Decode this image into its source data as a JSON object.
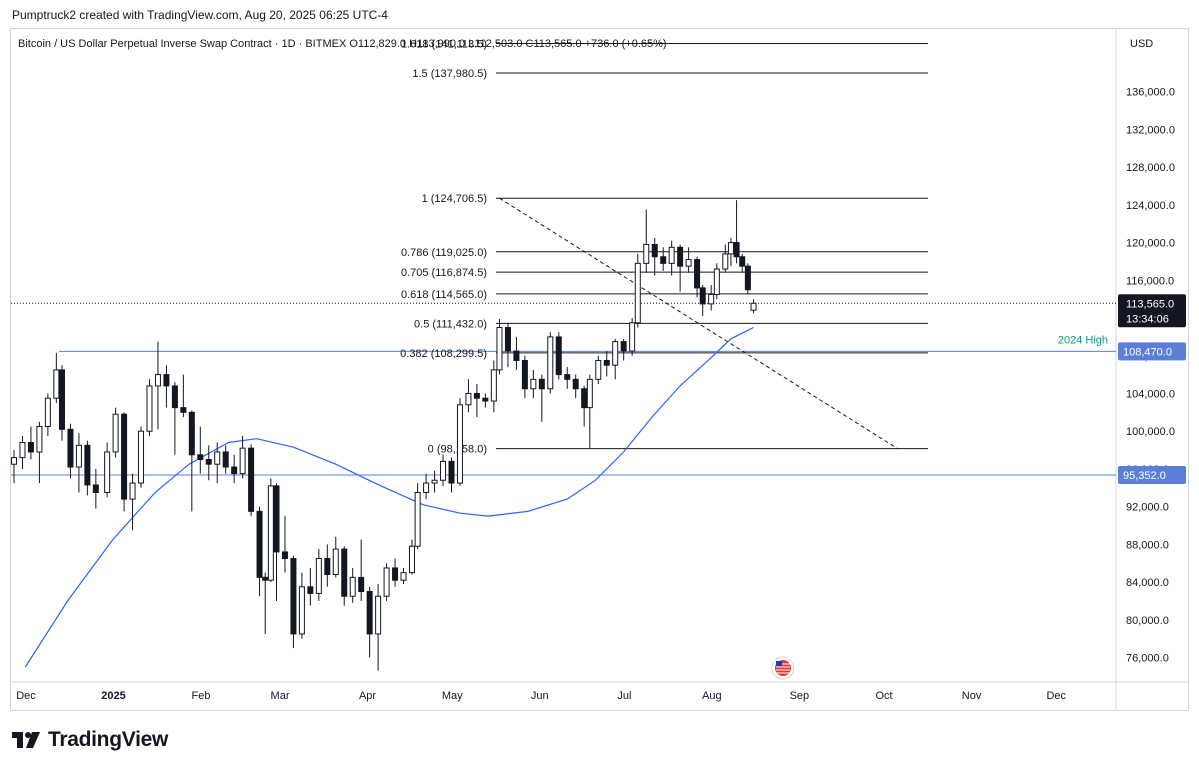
{
  "header": {
    "attribution": "Pumptruck2 created with TradingView.com, Aug 20, 2025 06:25 UTC-4"
  },
  "legend": {
    "symbol": "Bitcoin / US Dollar Perpetual Inverse Swap Contract · 1D · BITMEX",
    "ohlc": "O112,829.0  H113,990.0  L112,503.0  C113,565.0  +736.0 (+0.65%)"
  },
  "price_axis": {
    "currency": "USD",
    "last_price_label": "113,565.0",
    "countdown": "13:34:06",
    "ma_label": "108,470.0",
    "support_label": "95,352.0"
  },
  "colors": {
    "up": "#131722",
    "down": "#131722",
    "ma": "#2962ff",
    "hline": "#5b7fd6",
    "fib": "#131722",
    "annotation": "#089981",
    "label_box": "#5b7fd6",
    "last_box": "#131722"
  },
  "brand": {
    "name": "TradingView",
    "icon": "tradingview-logo-icon"
  },
  "chart_data": {
    "type": "candlestick",
    "x_ticks": [
      "Dec",
      "2025",
      "Feb",
      "Mar",
      "Apr",
      "May",
      "Jun",
      "Jul",
      "Aug",
      "Sep",
      "Oct",
      "Nov",
      "Dec"
    ],
    "y_ticks": [
      76000,
      80000,
      84000,
      88000,
      92000,
      96000,
      100000,
      104000,
      108000,
      112000,
      116000,
      120000,
      124000,
      128000,
      132000,
      136000
    ],
    "y_tick_labels": [
      "76,000.0",
      "80,000.0",
      "84,000.0",
      "88,000.0",
      "92,000.0",
      "96,000.0",
      "100,000.0",
      "104,000.0",
      "108,000.0",
      "112,000.0",
      "116,000.0",
      "120,000.0",
      "124,000.0",
      "128,000.0",
      "132,000.0",
      "136,000.0"
    ],
    "ylim": [
      72000,
      141500
    ],
    "fibonacci": [
      {
        "label": "1.618 (141,113.5)",
        "level": 141113.5
      },
      {
        "label": "1.5 (137,980.5)",
        "level": 137980.5
      },
      {
        "label": "1 (124,706.5)",
        "level": 124706.5
      },
      {
        "label": "0.786 (119,025.0)",
        "level": 119025.0
      },
      {
        "label": "0.705 (116,874.5)",
        "level": 116874.5
      },
      {
        "label": "0.618 (114,565.0)",
        "level": 114565.0
      },
      {
        "label": "0.5 (111,432.0)",
        "level": 111432.0
      },
      {
        "label": "0.382 (108,299.5)",
        "level": 108299.5
      },
      {
        "label": "0 (98,158.0)",
        "level": 98158.0
      }
    ],
    "horizontal_lines": [
      {
        "name": "2024 High",
        "level": 108470.0
      },
      {
        "name": "",
        "level": 95352.0
      }
    ],
    "last_price": 113565.0,
    "trendline": {
      "from": {
        "x": "2025-05-22",
        "y": 124706.5
      },
      "to": {
        "x": "2025-10-10",
        "y": 98158.0
      }
    },
    "moving_average_points": [
      [
        "2024-12-05",
        75000
      ],
      [
        "2024-12-20",
        82000
      ],
      [
        "2025-01-05",
        88500
      ],
      [
        "2025-01-20",
        93500
      ],
      [
        "2025-02-01",
        96500
      ],
      [
        "2025-02-15",
        98800
      ],
      [
        "2025-02-25",
        99200
      ],
      [
        "2025-03-10",
        98300
      ],
      [
        "2025-03-25",
        96500
      ],
      [
        "2025-04-10",
        94200
      ],
      [
        "2025-04-25",
        92200
      ],
      [
        "2025-05-08",
        91300
      ],
      [
        "2025-05-18",
        91000
      ],
      [
        "2025-06-01",
        91500
      ],
      [
        "2025-06-15",
        92800
      ],
      [
        "2025-06-25",
        94800
      ],
      [
        "2025-07-05",
        97800
      ],
      [
        "2025-07-15",
        101500
      ],
      [
        "2025-07-25",
        104800
      ],
      [
        "2025-08-05",
        107800
      ],
      [
        "2025-08-12",
        109800
      ],
      [
        "2025-08-20",
        111000
      ]
    ],
    "candles": [
      {
        "t": "2024-12-01",
        "o": 96500,
        "h": 98000,
        "l": 94500,
        "c": 97200
      },
      {
        "t": "2024-12-04",
        "o": 97200,
        "h": 99500,
        "l": 96000,
        "c": 98800
      },
      {
        "t": "2024-12-07",
        "o": 98800,
        "h": 100500,
        "l": 97000,
        "c": 97800
      },
      {
        "t": "2024-12-10",
        "o": 97800,
        "h": 101000,
        "l": 94500,
        "c": 100500
      },
      {
        "t": "2024-12-13",
        "o": 100500,
        "h": 104000,
        "l": 99500,
        "c": 103500
      },
      {
        "t": "2024-12-16",
        "o": 103500,
        "h": 108300,
        "l": 103000,
        "c": 106500
      },
      {
        "t": "2024-12-18",
        "o": 106500,
        "h": 107000,
        "l": 99000,
        "c": 100200
      },
      {
        "t": "2024-12-21",
        "o": 100200,
        "h": 100800,
        "l": 95000,
        "c": 96200
      },
      {
        "t": "2024-12-24",
        "o": 96200,
        "h": 99800,
        "l": 93500,
        "c": 98500
      },
      {
        "t": "2024-12-27",
        "o": 98500,
        "h": 99000,
        "l": 93200,
        "c": 94300
      },
      {
        "t": "2024-12-30",
        "o": 94300,
        "h": 96000,
        "l": 91800,
        "c": 93500
      },
      {
        "t": "2025-01-03",
        "o": 93500,
        "h": 98800,
        "l": 93000,
        "c": 97800
      },
      {
        "t": "2025-01-06",
        "o": 97800,
        "h": 102500,
        "l": 97200,
        "c": 101800
      },
      {
        "t": "2025-01-09",
        "o": 101800,
        "h": 102000,
        "l": 91500,
        "c": 92800
      },
      {
        "t": "2025-01-12",
        "o": 92800,
        "h": 95500,
        "l": 89500,
        "c": 94500
      },
      {
        "t": "2025-01-15",
        "o": 94500,
        "h": 100500,
        "l": 94000,
        "c": 100000
      },
      {
        "t": "2025-01-18",
        "o": 100000,
        "h": 105500,
        "l": 99500,
        "c": 104800
      },
      {
        "t": "2025-01-21",
        "o": 104800,
        "h": 109500,
        "l": 100200,
        "c": 106000
      },
      {
        "t": "2025-01-24",
        "o": 106000,
        "h": 107000,
        "l": 102500,
        "c": 104800
      },
      {
        "t": "2025-01-27",
        "o": 104800,
        "h": 105200,
        "l": 97500,
        "c": 102500
      },
      {
        "t": "2025-01-30",
        "o": 102500,
        "h": 106000,
        "l": 101500,
        "c": 102000
      },
      {
        "t": "2025-02-02",
        "o": 102000,
        "h": 102200,
        "l": 91500,
        "c": 97500
      },
      {
        "t": "2025-02-05",
        "o": 97500,
        "h": 100500,
        "l": 95500,
        "c": 97000
      },
      {
        "t": "2025-02-08",
        "o": 97000,
        "h": 98500,
        "l": 94800,
        "c": 96500
      },
      {
        "t": "2025-02-11",
        "o": 96500,
        "h": 98800,
        "l": 94500,
        "c": 97800
      },
      {
        "t": "2025-02-14",
        "o": 97800,
        "h": 98500,
        "l": 95500,
        "c": 96200
      },
      {
        "t": "2025-02-17",
        "o": 96200,
        "h": 97500,
        "l": 94500,
        "c": 95500
      },
      {
        "t": "2025-02-20",
        "o": 95500,
        "h": 99500,
        "l": 95000,
        "c": 98200
      },
      {
        "t": "2025-02-23",
        "o": 98200,
        "h": 98600,
        "l": 91000,
        "c": 91500
      },
      {
        "t": "2025-02-26",
        "o": 91500,
        "h": 92000,
        "l": 82500,
        "c": 84500
      },
      {
        "t": "2025-02-28",
        "o": 84500,
        "h": 85000,
        "l": 78500,
        "c": 84200
      },
      {
        "t": "2025-03-02",
        "o": 84200,
        "h": 95000,
        "l": 84000,
        "c": 94200
      },
      {
        "t": "2025-03-04",
        "o": 94200,
        "h": 94500,
        "l": 82000,
        "c": 87200
      },
      {
        "t": "2025-03-07",
        "o": 87200,
        "h": 91000,
        "l": 85000,
        "c": 86500
      },
      {
        "t": "2025-03-10",
        "o": 86500,
        "h": 86800,
        "l": 77000,
        "c": 78500
      },
      {
        "t": "2025-03-13",
        "o": 78500,
        "h": 85000,
        "l": 78000,
        "c": 83500
      },
      {
        "t": "2025-03-16",
        "o": 83500,
        "h": 85500,
        "l": 81500,
        "c": 82800
      },
      {
        "t": "2025-03-19",
        "o": 82800,
        "h": 87500,
        "l": 82000,
        "c": 86500
      },
      {
        "t": "2025-03-22",
        "o": 86500,
        "h": 88000,
        "l": 83500,
        "c": 84800
      },
      {
        "t": "2025-03-25",
        "o": 84800,
        "h": 88800,
        "l": 84500,
        "c": 87500
      },
      {
        "t": "2025-03-28",
        "o": 87500,
        "h": 87800,
        "l": 81500,
        "c": 82500
      },
      {
        "t": "2025-03-31",
        "o": 82500,
        "h": 85500,
        "l": 81800,
        "c": 84500
      },
      {
        "t": "2025-04-03",
        "o": 84500,
        "h": 88500,
        "l": 82000,
        "c": 83000
      },
      {
        "t": "2025-04-06",
        "o": 83000,
        "h": 83500,
        "l": 76000,
        "c": 78500
      },
      {
        "t": "2025-04-09",
        "o": 78500,
        "h": 83800,
        "l": 74600,
        "c": 82500
      },
      {
        "t": "2025-04-12",
        "o": 82500,
        "h": 86000,
        "l": 82000,
        "c": 85500
      },
      {
        "t": "2025-04-15",
        "o": 85500,
        "h": 86500,
        "l": 83500,
        "c": 84200
      },
      {
        "t": "2025-04-18",
        "o": 84200,
        "h": 85500,
        "l": 83800,
        "c": 85000
      },
      {
        "t": "2025-04-21",
        "o": 85000,
        "h": 88500,
        "l": 84800,
        "c": 87800
      },
      {
        "t": "2025-04-23",
        "o": 87800,
        "h": 94500,
        "l": 87500,
        "c": 93500
      },
      {
        "t": "2025-04-26",
        "o": 93500,
        "h": 95500,
        "l": 92800,
        "c": 94500
      },
      {
        "t": "2025-04-29",
        "o": 94500,
        "h": 95800,
        "l": 93500,
        "c": 94800
      },
      {
        "t": "2025-05-02",
        "o": 94800,
        "h": 97500,
        "l": 94200,
        "c": 96800
      },
      {
        "t": "2025-05-05",
        "o": 96800,
        "h": 97200,
        "l": 93500,
        "c": 94500
      },
      {
        "t": "2025-05-08",
        "o": 94500,
        "h": 103500,
        "l": 94200,
        "c": 102800
      },
      {
        "t": "2025-05-11",
        "o": 102800,
        "h": 105500,
        "l": 102000,
        "c": 104000
      },
      {
        "t": "2025-05-14",
        "o": 104000,
        "h": 105000,
        "l": 101500,
        "c": 103500
      },
      {
        "t": "2025-05-17",
        "o": 103500,
        "h": 104000,
        "l": 102500,
        "c": 103200
      },
      {
        "t": "2025-05-20",
        "o": 103200,
        "h": 107500,
        "l": 102000,
        "c": 106500
      },
      {
        "t": "2025-05-22",
        "o": 106500,
        "h": 111900,
        "l": 106000,
        "c": 111000
      },
      {
        "t": "2025-05-25",
        "o": 111000,
        "h": 111500,
        "l": 106800,
        "c": 108500
      },
      {
        "t": "2025-05-28",
        "o": 108500,
        "h": 110000,
        "l": 106500,
        "c": 107500
      },
      {
        "t": "2025-05-31",
        "o": 107500,
        "h": 108000,
        "l": 103500,
        "c": 104500
      },
      {
        "t": "2025-06-03",
        "o": 104500,
        "h": 106500,
        "l": 103500,
        "c": 105500
      },
      {
        "t": "2025-06-06",
        "o": 105500,
        "h": 106000,
        "l": 101000,
        "c": 104500
      },
      {
        "t": "2025-06-09",
        "o": 104500,
        "h": 110500,
        "l": 104000,
        "c": 110000
      },
      {
        "t": "2025-06-12",
        "o": 110000,
        "h": 110500,
        "l": 105500,
        "c": 106000
      },
      {
        "t": "2025-06-15",
        "o": 106000,
        "h": 106800,
        "l": 104500,
        "c": 105500
      },
      {
        "t": "2025-06-18",
        "o": 105500,
        "h": 106000,
        "l": 103500,
        "c": 104500
      },
      {
        "t": "2025-06-21",
        "o": 104500,
        "h": 104800,
        "l": 100500,
        "c": 102500
      },
      {
        "t": "2025-06-23",
        "o": 102500,
        "h": 106000,
        "l": 98200,
        "c": 105500
      },
      {
        "t": "2025-06-26",
        "o": 105500,
        "h": 108000,
        "l": 105000,
        "c": 107500
      },
      {
        "t": "2025-06-29",
        "o": 107500,
        "h": 108500,
        "l": 105800,
        "c": 107000
      },
      {
        "t": "2025-07-02",
        "o": 107000,
        "h": 109800,
        "l": 105500,
        "c": 109500
      },
      {
        "t": "2025-07-05",
        "o": 109500,
        "h": 109800,
        "l": 107500,
        "c": 108500
      },
      {
        "t": "2025-07-08",
        "o": 108500,
        "h": 112000,
        "l": 108000,
        "c": 111500
      },
      {
        "t": "2025-07-10",
        "o": 111500,
        "h": 118800,
        "l": 111000,
        "c": 117800
      },
      {
        "t": "2025-07-13",
        "o": 117800,
        "h": 123500,
        "l": 116800,
        "c": 119800
      },
      {
        "t": "2025-07-16",
        "o": 119800,
        "h": 120500,
        "l": 116500,
        "c": 118500
      },
      {
        "t": "2025-07-19",
        "o": 118500,
        "h": 119500,
        "l": 117000,
        "c": 117800
      },
      {
        "t": "2025-07-22",
        "o": 117800,
        "h": 120200,
        "l": 116500,
        "c": 119500
      },
      {
        "t": "2025-07-25",
        "o": 119500,
        "h": 119800,
        "l": 114800,
        "c": 117500
      },
      {
        "t": "2025-07-28",
        "o": 117500,
        "h": 119500,
        "l": 116800,
        "c": 118200
      },
      {
        "t": "2025-07-31",
        "o": 118200,
        "h": 118500,
        "l": 114200,
        "c": 115200
      },
      {
        "t": "2025-08-02",
        "o": 115200,
        "h": 115500,
        "l": 112200,
        "c": 113500
      },
      {
        "t": "2025-08-05",
        "o": 113500,
        "h": 115500,
        "l": 112800,
        "c": 114500
      },
      {
        "t": "2025-08-07",
        "o": 114500,
        "h": 117800,
        "l": 114000,
        "c": 117200
      },
      {
        "t": "2025-08-10",
        "o": 117200,
        "h": 119800,
        "l": 116800,
        "c": 118800
      },
      {
        "t": "2025-08-12",
        "o": 118800,
        "h": 120500,
        "l": 117500,
        "c": 120000
      },
      {
        "t": "2025-08-14",
        "o": 120000,
        "h": 124500,
        "l": 117800,
        "c": 118500
      },
      {
        "t": "2025-08-16",
        "o": 118500,
        "h": 118800,
        "l": 116800,
        "c": 117500
      },
      {
        "t": "2025-08-18",
        "o": 117500,
        "h": 117800,
        "l": 114500,
        "c": 115000
      },
      {
        "t": "2025-08-20",
        "o": 112829,
        "h": 113990,
        "l": 112503,
        "c": 113565
      }
    ]
  }
}
